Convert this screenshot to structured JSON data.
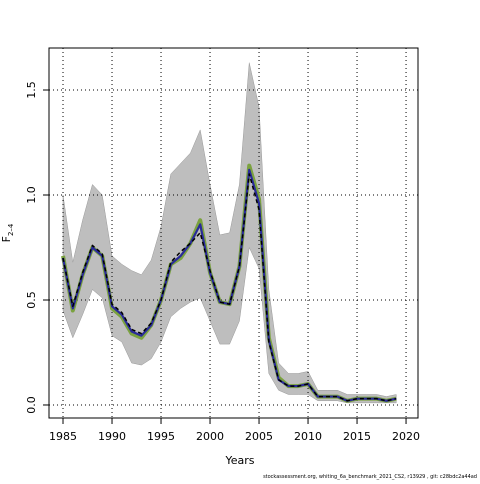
{
  "chart_data": {
    "type": "line",
    "xlabel": "Years",
    "ylabel": {
      "main": "F",
      "sub": "2–4"
    },
    "footnote": "stockassessment.org, whiting_6a_benchmark_2021_CS2, r13929 , git: c28bdc2a44ad",
    "x": [
      1985,
      1986,
      1987,
      1988,
      1989,
      1990,
      1991,
      1992,
      1993,
      1994,
      1995,
      1996,
      1997,
      1998,
      1999,
      2000,
      2001,
      2002,
      2003,
      2004,
      2005,
      2006,
      2007,
      2008,
      2009,
      2010,
      2011,
      2012,
      2013,
      2014,
      2015,
      2016,
      2017,
      2018,
      2019
    ],
    "band": {
      "color": "#bebebe",
      "upper": [
        1.0,
        0.68,
        0.88,
        1.05,
        1.0,
        0.71,
        0.67,
        0.64,
        0.62,
        0.69,
        0.85,
        1.1,
        1.15,
        1.2,
        1.31,
        1.05,
        0.81,
        0.82,
        1.05,
        1.63,
        1.42,
        0.55,
        0.2,
        0.15,
        0.15,
        0.16,
        0.07,
        0.07,
        0.07,
        0.05,
        0.05,
        0.05,
        0.05,
        0.04,
        0.05
      ],
      "lower": [
        0.45,
        0.32,
        0.43,
        0.55,
        0.51,
        0.33,
        0.3,
        0.2,
        0.19,
        0.22,
        0.3,
        0.42,
        0.46,
        0.49,
        0.51,
        0.4,
        0.29,
        0.29,
        0.4,
        0.75,
        0.65,
        0.15,
        0.07,
        0.05,
        0.05,
        0.05,
        0.02,
        0.02,
        0.02,
        0.01,
        0.01,
        0.01,
        0.01,
        0.01,
        0.01
      ]
    },
    "series": [
      {
        "color": "#7ba23f",
        "values": [
          0.71,
          0.45,
          0.62,
          0.75,
          0.71,
          0.46,
          0.42,
          0.34,
          0.32,
          0.38,
          0.5,
          0.67,
          0.7,
          0.77,
          0.88,
          0.63,
          0.49,
          0.48,
          0.66,
          1.14,
          0.98,
          0.32,
          0.13,
          0.09,
          0.09,
          0.1,
          0.04,
          0.04,
          0.04,
          0.02,
          0.03,
          0.03,
          0.03,
          0.02,
          0.03
        ]
      },
      {
        "color": "#2a2a9a",
        "values": [
          0.7,
          0.46,
          0.62,
          0.75,
          0.71,
          0.47,
          0.43,
          0.35,
          0.33,
          0.38,
          0.5,
          0.67,
          0.71,
          0.77,
          0.86,
          0.63,
          0.49,
          0.48,
          0.66,
          1.12,
          0.96,
          0.31,
          0.12,
          0.09,
          0.09,
          0.1,
          0.04,
          0.04,
          0.04,
          0.02,
          0.03,
          0.03,
          0.03,
          0.02,
          0.03
        ]
      },
      {
        "color": "#000000",
        "line_style": "dashed",
        "values": [
          0.7,
          0.47,
          0.63,
          0.76,
          0.72,
          0.48,
          0.44,
          0.36,
          0.34,
          0.39,
          0.5,
          0.68,
          0.73,
          0.77,
          0.82,
          0.64,
          0.49,
          0.48,
          0.66,
          1.1,
          0.93,
          0.3,
          0.12,
          0.09,
          0.09,
          0.1,
          0.04,
          0.04,
          0.04,
          0.02,
          0.03,
          0.03,
          0.03,
          0.02,
          0.03
        ]
      }
    ],
    "xlim": [
      1983.57,
      2021.22
    ],
    "ylim": [
      -0.062,
      1.7
    ],
    "xticks": [
      1985,
      1990,
      1995,
      2000,
      2005,
      2010,
      2015,
      2020
    ],
    "yticks": [
      {
        "value": 0,
        "label": "0.0"
      },
      0.5,
      {
        "value": 1,
        "label": "1.0"
      },
      1.5
    ],
    "grid": true
  }
}
